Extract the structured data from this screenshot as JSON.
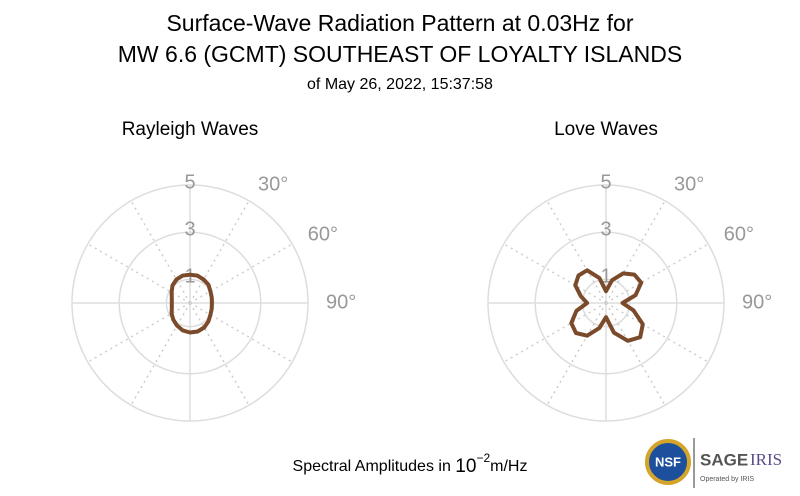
{
  "title": [
    "Surface-Wave Radiation Pattern at 0.03Hz for",
    "MW 6.6 (GCMT) SOUTHEAST OF LOYALTY ISLANDS"
  ],
  "subtitle": "of May 26, 2022, 15:37:58",
  "footer": {
    "text": "Spectral Amplitudes in",
    "base": "10",
    "exponent": "−2",
    "unit": "m/Hz"
  },
  "logo": {
    "nsf": "NSF",
    "sage": "SAGE",
    "iris": "IRIS",
    "operated": "Operated by IRIS"
  },
  "chart_data": [
    {
      "type": "polar",
      "title": "Rayleigh Waves",
      "rlim": [
        0,
        5
      ],
      "rticks": [
        1,
        3,
        5
      ],
      "thetaticks": [
        {
          "value": 30,
          "label": "30°"
        },
        {
          "value": 60,
          "label": "60°"
        },
        {
          "value": 90,
          "label": "90°"
        }
      ],
      "theta": [
        0,
        15,
        30,
        45,
        60,
        75,
        90,
        105,
        120,
        135,
        150,
        165,
        180,
        195,
        210,
        225,
        240,
        255,
        270,
        285,
        300,
        315,
        330,
        345
      ],
      "series": [
        {
          "color": "#7a4a2a",
          "values": [
            1.2,
            1.2,
            1.15,
            1.1,
            1.0,
            0.95,
            0.93,
            0.95,
            1.0,
            1.1,
            1.2,
            1.25,
            1.25,
            1.2,
            1.1,
            1.0,
            0.9,
            0.8,
            0.77,
            0.8,
            0.9,
            1.05,
            1.15,
            1.2
          ]
        }
      ]
    },
    {
      "type": "polar",
      "title": "Love Waves",
      "rlim": [
        0,
        5
      ],
      "rticks": [
        1,
        3,
        5
      ],
      "thetaticks": [
        {
          "value": 30,
          "label": "30°"
        },
        {
          "value": 60,
          "label": "60°"
        },
        {
          "value": 90,
          "label": "90°"
        }
      ],
      "theta": [
        0,
        15,
        30,
        45,
        60,
        75,
        90,
        105,
        120,
        135,
        150,
        165,
        180,
        195,
        210,
        225,
        240,
        255,
        270,
        285,
        300,
        315,
        330,
        345
      ],
      "series": [
        {
          "color": "#7a4a2a",
          "values": [
            0.5,
            1.0,
            1.45,
            1.7,
            1.72,
            1.3,
            0.7,
            1.2,
            1.8,
            2.05,
            1.85,
            1.3,
            0.6,
            1.1,
            1.6,
            1.8,
            1.7,
            1.3,
            0.8,
            1.1,
            1.5,
            1.65,
            1.6,
            1.1
          ]
        }
      ]
    }
  ]
}
